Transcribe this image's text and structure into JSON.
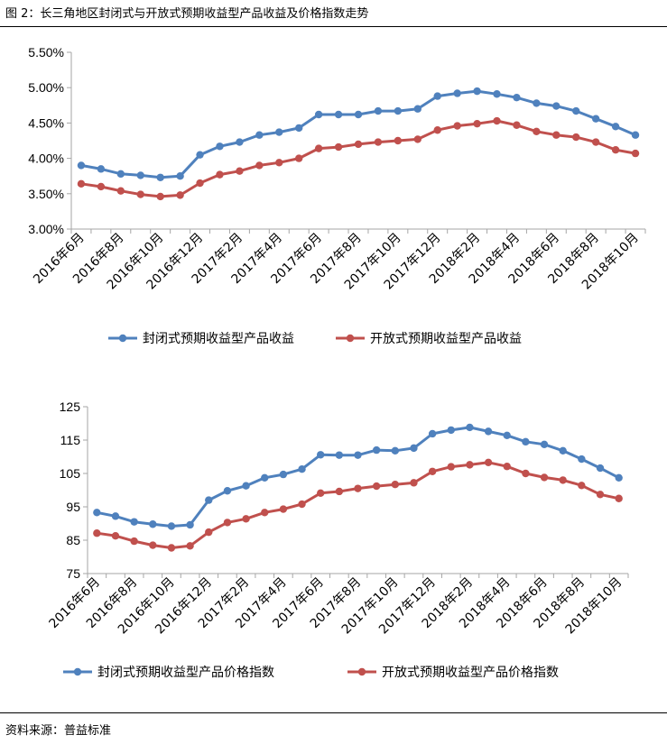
{
  "figure_title": "图 2：长三角地区封闭式与开放式预期收益型产品收益及价格指数走势",
  "source_note": "资料来源：普益标准",
  "colors": {
    "closed": "#4F81BD",
    "open": "#C0504D",
    "axis": "#A6A6A6"
  },
  "chart_data": [
    {
      "type": "line",
      "categories": [
        "2016年6月",
        "2016年7月",
        "2016年8月",
        "2016年9月",
        "2016年10月",
        "2016年11月",
        "2016年12月",
        "2017年1月",
        "2017年2月",
        "2017年3月",
        "2017年4月",
        "2017年5月",
        "2017年6月",
        "2017年7月",
        "2017年8月",
        "2017年9月",
        "2017年10月",
        "2017年11月",
        "2017年12月",
        "2018年1月",
        "2018年2月",
        "2018年3月",
        "2018年4月",
        "2018年5月",
        "2018年6月",
        "2018年7月",
        "2018年8月",
        "2018年9月",
        "2018年10月"
      ],
      "tick_labels": [
        "2016年6月",
        "2016年8月",
        "2016年10月",
        "2016年12月",
        "2017年2月",
        "2017年4月",
        "2017年6月",
        "2017年8月",
        "2017年10月",
        "2017年12月",
        "2018年2月",
        "2018年4月",
        "2018年6月",
        "2018年8月",
        "2018年10月"
      ],
      "y_ticks": [
        "3.00%",
        "3.50%",
        "4.00%",
        "4.50%",
        "5.00%",
        "5.50%"
      ],
      "ylim": [
        3.0,
        5.5
      ],
      "y_tick_step": 0.5,
      "y_unit": "%",
      "legend_position": "bottom",
      "series": [
        {
          "name": "封闭式预期收益型产品收益",
          "color": "#4F81BD",
          "values": [
            3.9,
            3.85,
            3.78,
            3.76,
            3.73,
            3.75,
            4.05,
            4.17,
            4.23,
            4.33,
            4.37,
            4.43,
            4.62,
            4.62,
            4.62,
            4.67,
            4.67,
            4.7,
            4.88,
            4.92,
            4.95,
            4.91,
            4.86,
            4.78,
            4.74,
            4.67,
            4.56,
            4.45,
            4.33
          ]
        },
        {
          "name": "开放式预期收益型产品收益",
          "color": "#C0504D",
          "values": [
            3.64,
            3.6,
            3.54,
            3.49,
            3.46,
            3.48,
            3.65,
            3.77,
            3.82,
            3.9,
            3.94,
            4.0,
            4.14,
            4.16,
            4.2,
            4.23,
            4.25,
            4.27,
            4.4,
            4.46,
            4.49,
            4.53,
            4.47,
            4.38,
            4.33,
            4.3,
            4.23,
            4.12,
            4.07
          ]
        }
      ]
    },
    {
      "type": "line",
      "categories": [
        "2016年6月",
        "2016年7月",
        "2016年8月",
        "2016年9月",
        "2016年10月",
        "2016年11月",
        "2016年12月",
        "2017年1月",
        "2017年2月",
        "2017年3月",
        "2017年4月",
        "2017年5月",
        "2017年6月",
        "2017年7月",
        "2017年8月",
        "2017年9月",
        "2017年10月",
        "2017年11月",
        "2017年12月",
        "2018年1月",
        "2018年2月",
        "2018年3月",
        "2018年4月",
        "2018年5月",
        "2018年6月",
        "2018年7月",
        "2018年8月",
        "2018年9月",
        "2018年10月"
      ],
      "tick_labels": [
        "2016年6月",
        "2016年8月",
        "2016年10月",
        "2016年12月",
        "2017年2月",
        "2017年4月",
        "2017年6月",
        "2017年8月",
        "2017年10月",
        "2017年12月",
        "2018年2月",
        "2018年4月",
        "2018年6月",
        "2018年8月",
        "2018年10月"
      ],
      "y_ticks": [
        "75",
        "85",
        "95",
        "105",
        "115",
        "125"
      ],
      "ylim": [
        75,
        125
      ],
      "y_tick_step": 10,
      "y_unit": "",
      "legend_position": "bottom",
      "series": [
        {
          "name": "封闭式预期收益型产品价格指数",
          "color": "#4F81BD",
          "values": [
            93.3,
            92.2,
            90.5,
            89.8,
            89.2,
            89.6,
            97.0,
            99.8,
            101.3,
            103.7,
            104.7,
            106.3,
            110.6,
            110.5,
            110.5,
            112.0,
            111.8,
            112.6,
            116.9,
            118.0,
            118.8,
            117.6,
            116.4,
            114.5,
            113.7,
            111.8,
            109.3,
            106.6,
            103.7
          ]
        },
        {
          "name": "开放式预期收益型产品价格指数",
          "color": "#C0504D",
          "values": [
            87.1,
            86.3,
            84.7,
            83.5,
            82.7,
            83.3,
            87.4,
            90.3,
            91.4,
            93.3,
            94.3,
            95.8,
            99.1,
            99.6,
            100.5,
            101.2,
            101.7,
            102.2,
            105.6,
            107.0,
            107.6,
            108.3,
            107.1,
            105.0,
            103.8,
            103.0,
            101.4,
            98.7,
            97.5
          ]
        }
      ]
    }
  ]
}
